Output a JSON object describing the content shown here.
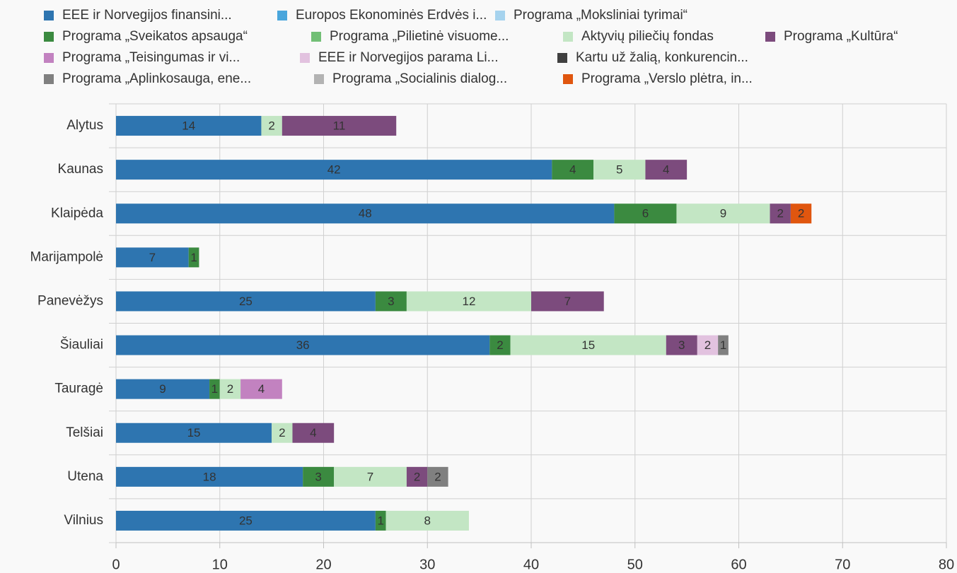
{
  "chart_data": {
    "type": "stacked-bar-horizontal",
    "categories": [
      "Alytus",
      "Kaunas",
      "Klaipėda",
      "Marijampolė",
      "Panevėžys",
      "Šiauliai",
      "Tauragė",
      "Telšiai",
      "Utena",
      "Vilnius"
    ],
    "series": [
      {
        "name": "EEE ir Norvegijos finansini...",
        "color": "#2e75b0",
        "values": [
          14,
          42,
          48,
          7,
          25,
          36,
          9,
          15,
          18,
          25
        ]
      },
      {
        "name": "Europos Ekonominės Erdvės i...",
        "color": "#4aa6dc",
        "values": [
          null,
          null,
          null,
          null,
          null,
          null,
          null,
          null,
          null,
          null
        ]
      },
      {
        "name": "Programa „Moksliniai tyrimai“",
        "color": "#a6d3ee",
        "values": [
          null,
          null,
          null,
          null,
          null,
          null,
          null,
          null,
          null,
          null
        ]
      },
      {
        "name": "Programa „Sveikatos apsauga“",
        "color": "#3b8a40",
        "values": [
          null,
          4,
          6,
          1,
          3,
          2,
          1,
          null,
          3,
          1
        ]
      },
      {
        "name": "Programa „Pilietinė visuome...",
        "color": "#72bf76",
        "values": [
          null,
          null,
          null,
          null,
          null,
          null,
          null,
          null,
          null,
          null
        ]
      },
      {
        "name": "Aktyvių piliečių fondas",
        "color": "#c3e6c4",
        "values": [
          2,
          5,
          9,
          null,
          12,
          15,
          2,
          2,
          7,
          8
        ]
      },
      {
        "name": "Programa „Kultūra“",
        "color": "#7c4b7d",
        "values": [
          11,
          4,
          2,
          null,
          7,
          3,
          null,
          4,
          2,
          null
        ]
      },
      {
        "name": "Programa „Teisingumas ir vi...",
        "color": "#c282c0",
        "values": [
          null,
          null,
          null,
          null,
          null,
          null,
          4,
          null,
          null,
          null
        ]
      },
      {
        "name": "EEE ir Norvegijos parama Li...",
        "color": "#e2c2df",
        "values": [
          null,
          null,
          null,
          null,
          null,
          2,
          null,
          null,
          null,
          null
        ]
      },
      {
        "name": "Kartu už žalią, konkurencin...",
        "color": "#404040",
        "values": [
          null,
          null,
          null,
          null,
          null,
          null,
          null,
          null,
          null,
          null
        ]
      },
      {
        "name": "Programa „Aplinkosauga, ene...",
        "color": "#808080",
        "values": [
          null,
          null,
          null,
          null,
          null,
          1,
          null,
          null,
          2,
          null
        ]
      },
      {
        "name": "Programa „Socialinis dialog...",
        "color": "#b3b3b3",
        "values": [
          null,
          null,
          null,
          null,
          null,
          null,
          null,
          null,
          null,
          null
        ]
      },
      {
        "name": "Programa „Verslo plėtra, in...",
        "color": "#e0560f",
        "values": [
          null,
          null,
          2,
          null,
          null,
          null,
          null,
          null,
          null,
          null
        ]
      }
    ],
    "xlim": [
      0,
      80
    ],
    "xticks": [
      0,
      10,
      20,
      30,
      40,
      50,
      60,
      70,
      80
    ],
    "grid": true
  }
}
